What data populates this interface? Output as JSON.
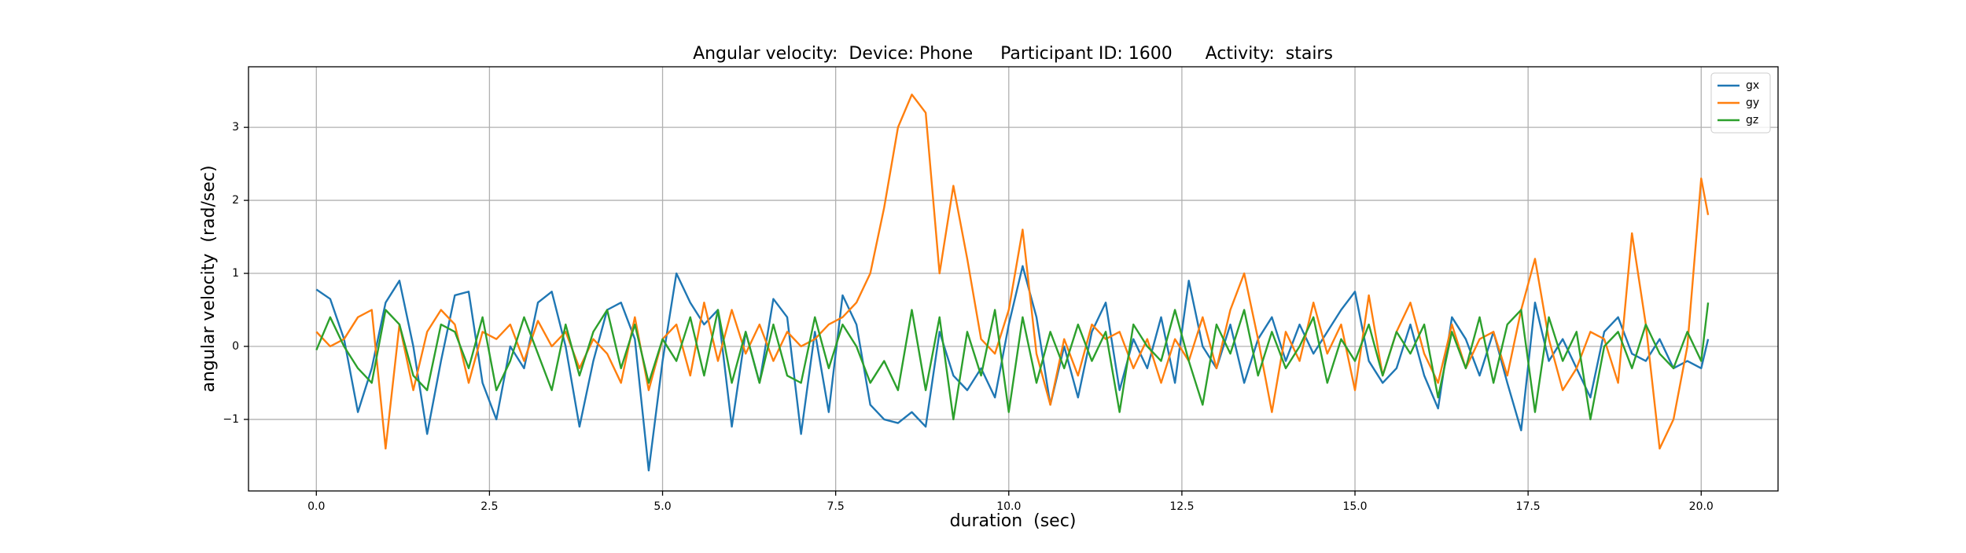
{
  "chart_data": {
    "type": "line",
    "title": "Angular velocity:  Device: Phone     Participant ID: 1600      Activity:  stairs",
    "x_label": "duration  (sec)",
    "y_label": "angular velocity  (rad/sec)",
    "x": [
      0,
      0.2,
      0.4,
      0.6,
      0.8,
      1.0,
      1.2,
      1.4,
      1.6,
      1.8,
      2.0,
      2.2,
      2.4,
      2.6,
      2.8,
      3.0,
      3.2,
      3.4,
      3.6,
      3.8,
      4.0,
      4.2,
      4.4,
      4.6,
      4.8,
      5.0,
      5.2,
      5.4,
      5.6,
      5.8,
      6.0,
      6.2,
      6.4,
      6.6,
      6.8,
      7.0,
      7.2,
      7.4,
      7.6,
      7.8,
      8.0,
      8.2,
      8.4,
      8.6,
      8.8,
      9.0,
      9.2,
      9.4,
      9.6,
      9.8,
      10.0,
      10.2,
      10.4,
      10.6,
      10.8,
      11.0,
      11.2,
      11.4,
      11.6,
      11.8,
      12.0,
      12.2,
      12.4,
      12.6,
      12.8,
      13.0,
      13.2,
      13.4,
      13.6,
      13.8,
      14.0,
      14.2,
      14.4,
      14.6,
      14.8,
      15.0,
      15.2,
      15.4,
      15.6,
      15.8,
      16.0,
      16.2,
      16.4,
      16.6,
      16.8,
      17.0,
      17.2,
      17.4,
      17.6,
      17.8,
      18.0,
      18.2,
      18.4,
      18.6,
      18.8,
      19.0,
      19.2,
      19.4,
      19.6,
      19.8,
      20.0,
      20.1
    ],
    "series": [
      {
        "name": "gx",
        "color": "#1f77b4",
        "values": [
          0.78,
          0.65,
          0.1,
          -0.9,
          -0.3,
          0.6,
          0.9,
          0.0,
          -1.2,
          -0.2,
          0.7,
          0.75,
          -0.5,
          -1.0,
          0.0,
          -0.3,
          0.6,
          0.75,
          0.0,
          -1.1,
          -0.2,
          0.5,
          0.6,
          0.1,
          -1.7,
          -0.2,
          1.0,
          0.6,
          0.3,
          0.5,
          -1.1,
          0.2,
          -0.5,
          0.65,
          0.4,
          -1.2,
          0.2,
          -0.9,
          0.7,
          0.3,
          -0.8,
          -1.0,
          -1.05,
          -0.9,
          -1.1,
          0.2,
          -0.4,
          -0.6,
          -0.3,
          -0.7,
          0.3,
          1.1,
          0.4,
          -0.8,
          0.0,
          -0.7,
          0.2,
          0.6,
          -0.6,
          0.1,
          -0.3,
          0.4,
          -0.5,
          0.9,
          0.0,
          -0.3,
          0.3,
          -0.5,
          0.1,
          0.4,
          -0.2,
          0.3,
          -0.1,
          0.2,
          0.5,
          0.75,
          -0.2,
          -0.5,
          -0.3,
          0.3,
          -0.4,
          -0.85,
          0.4,
          0.1,
          -0.4,
          0.2,
          -0.5,
          -1.15,
          0.6,
          -0.2,
          0.1,
          -0.3,
          -0.7,
          0.2,
          0.4,
          -0.1,
          -0.2,
          0.1,
          -0.3,
          -0.2,
          -0.3,
          0.1
        ]
      },
      {
        "name": "gy",
        "color": "#ff7f0e",
        "values": [
          0.2,
          0.0,
          0.1,
          0.4,
          0.5,
          -1.4,
          0.3,
          -0.6,
          0.2,
          0.5,
          0.3,
          -0.5,
          0.2,
          0.1,
          0.3,
          -0.2,
          0.35,
          0.0,
          0.2,
          -0.3,
          0.1,
          -0.1,
          -0.5,
          0.4,
          -0.6,
          0.1,
          0.3,
          -0.4,
          0.6,
          -0.2,
          0.5,
          -0.1,
          0.3,
          -0.2,
          0.2,
          0.0,
          0.1,
          0.3,
          0.4,
          0.6,
          1.0,
          1.9,
          3.0,
          3.45,
          3.2,
          1.0,
          2.2,
          1.2,
          0.1,
          -0.1,
          0.5,
          1.6,
          -0.1,
          -0.8,
          0.1,
          -0.4,
          0.3,
          0.1,
          0.2,
          -0.3,
          0.1,
          -0.5,
          0.1,
          -0.2,
          0.4,
          -0.3,
          0.5,
          1.0,
          0.1,
          -0.9,
          0.2,
          -0.2,
          0.6,
          -0.1,
          0.3,
          -0.6,
          0.7,
          -0.4,
          0.2,
          0.6,
          -0.1,
          -0.5,
          0.3,
          -0.3,
          0.1,
          0.2,
          -0.4,
          0.5,
          1.2,
          0.1,
          -0.6,
          -0.3,
          0.2,
          0.1,
          -0.5,
          1.55,
          0.3,
          -1.4,
          -1.0,
          0.0,
          2.3,
          1.8
        ]
      },
      {
        "name": "gz",
        "color": "#2ca02c",
        "values": [
          -0.05,
          0.4,
          0.0,
          -0.3,
          -0.5,
          0.5,
          0.3,
          -0.4,
          -0.6,
          0.3,
          0.2,
          -0.3,
          0.4,
          -0.6,
          -0.2,
          0.4,
          -0.1,
          -0.6,
          0.3,
          -0.4,
          0.2,
          0.5,
          -0.3,
          0.3,
          -0.5,
          0.1,
          -0.2,
          0.4,
          -0.4,
          0.5,
          -0.5,
          0.2,
          -0.5,
          0.3,
          -0.4,
          -0.5,
          0.4,
          -0.3,
          0.3,
          0.0,
          -0.5,
          -0.2,
          -0.6,
          0.5,
          -0.6,
          0.4,
          -1.0,
          0.2,
          -0.4,
          0.5,
          -0.9,
          0.4,
          -0.5,
          0.2,
          -0.3,
          0.3,
          -0.2,
          0.2,
          -0.9,
          0.3,
          0.0,
          -0.2,
          0.5,
          -0.2,
          -0.8,
          0.3,
          -0.1,
          0.5,
          -0.4,
          0.2,
          -0.3,
          0.0,
          0.4,
          -0.5,
          0.1,
          -0.2,
          0.3,
          -0.4,
          0.2,
          -0.1,
          0.3,
          -0.7,
          0.2,
          -0.3,
          0.4,
          -0.5,
          0.3,
          0.5,
          -0.9,
          0.4,
          -0.2,
          0.2,
          -1.0,
          0.0,
          0.2,
          -0.3,
          0.3,
          -0.1,
          -0.3,
          0.2,
          -0.2,
          0.6
        ]
      }
    ],
    "xlim": [
      -0.98,
      21.11
    ],
    "ylim": [
      -1.98,
      3.83
    ],
    "xticks": [
      {
        "value": 0,
        "label": "0.0"
      },
      2.5,
      {
        "value": 5,
        "label": "5.0"
      },
      7.5,
      {
        "value": 10,
        "label": "10.0"
      },
      12.5,
      {
        "value": 15,
        "label": "15.0"
      },
      17.5,
      {
        "value": 20,
        "label": "20.0"
      }
    ],
    "yticks": [
      {
        "value": -1,
        "label": "−1"
      },
      0,
      1,
      2,
      3
    ],
    "grid": true,
    "legend": "upper right"
  }
}
